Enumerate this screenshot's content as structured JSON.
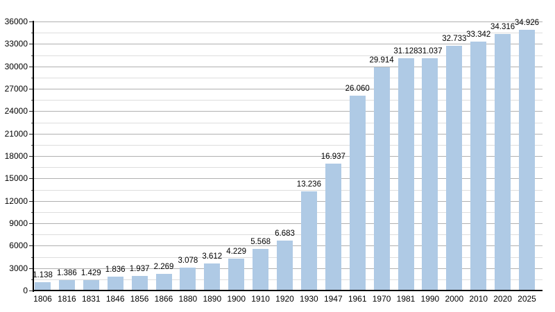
{
  "chart_data": {
    "type": "bar",
    "title": "",
    "xlabel": "",
    "ylabel": "",
    "categories": [
      "1806",
      "1816",
      "1831",
      "1846",
      "1856",
      "1866",
      "1880",
      "1890",
      "1900",
      "1910",
      "1920",
      "1930",
      "1947",
      "1961",
      "1970",
      "1981",
      "1990",
      "2000",
      "2010",
      "2020",
      "2025"
    ],
    "values": [
      1138,
      1386,
      1429,
      1836,
      1937,
      2269,
      3078,
      3612,
      4229,
      5568,
      6683,
      13236,
      16937,
      26060,
      29914,
      31128,
      31037,
      32733,
      33342,
      34316,
      34926
    ],
    "value_labels": [
      "1.138",
      "1.386",
      "1.429",
      "1.836",
      "1.937",
      "2.269",
      "3.078",
      "3.612",
      "4.229",
      "5.568",
      "6.683",
      "13.236",
      "16.937",
      "26.060",
      "29.914",
      "31.128",
      "31.037",
      "32.733",
      "33.342",
      "34.316",
      "34.926"
    ],
    "ylim": [
      0,
      36000
    ],
    "y_major_step": 3000,
    "y_minor_step": 1500,
    "y_tick_labels": [
      "0",
      "3000",
      "6000",
      "9000",
      "12000",
      "15000",
      "18000",
      "21000",
      "24000",
      "27000",
      "30000",
      "33000",
      "36000"
    ],
    "grid": "on",
    "legend": "none",
    "colors": {
      "bar": "#afcae5",
      "grid_major": "#b0b0b0",
      "grid_minor": "#dddddd",
      "axis": "#000000",
      "text": "#000000"
    }
  }
}
